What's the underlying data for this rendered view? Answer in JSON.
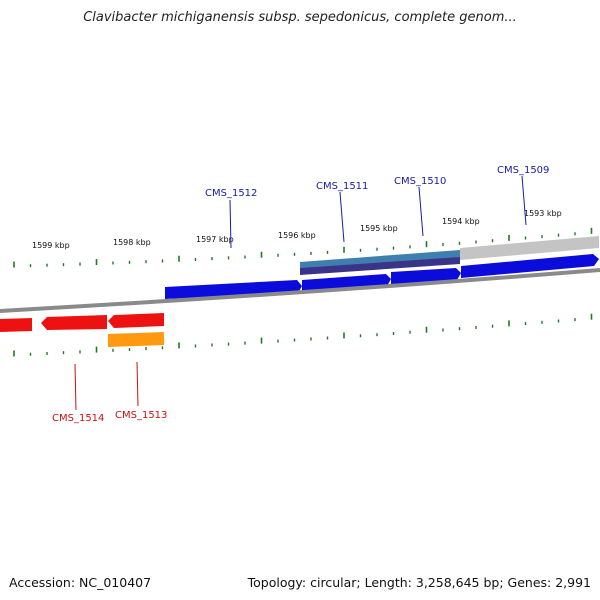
{
  "title": "Clavibacter michiganensis subsp. sepedonicus, complete genom...",
  "footer": {
    "accession": "Accession: NC_010407",
    "summary": "Topology: circular; Length: 3,258,645 bp; Genes: 2,991"
  },
  "kbp_labels": [
    "1599 kbp",
    "1598 kbp",
    "1597 kbp",
    "1596 kbp",
    "1595 kbp",
    "1594 kbp",
    "1593 kbp"
  ],
  "colors": {
    "forward_gene": "#0b0bdc",
    "reverse_gene": "#ee1111",
    "reverse_rna": "#ff9a10",
    "forward_label": "#1a1aa8",
    "reverse_label": "#cc0f0f",
    "backbone": "#8a8a8a",
    "tick": "#1e7a1e"
  },
  "genes": {
    "forward": [
      "CMS_1512",
      "CMS_1511",
      "CMS_1510",
      "CMS_1509"
    ],
    "reverse": [
      "CMS_1514",
      "CMS_1513"
    ]
  }
}
